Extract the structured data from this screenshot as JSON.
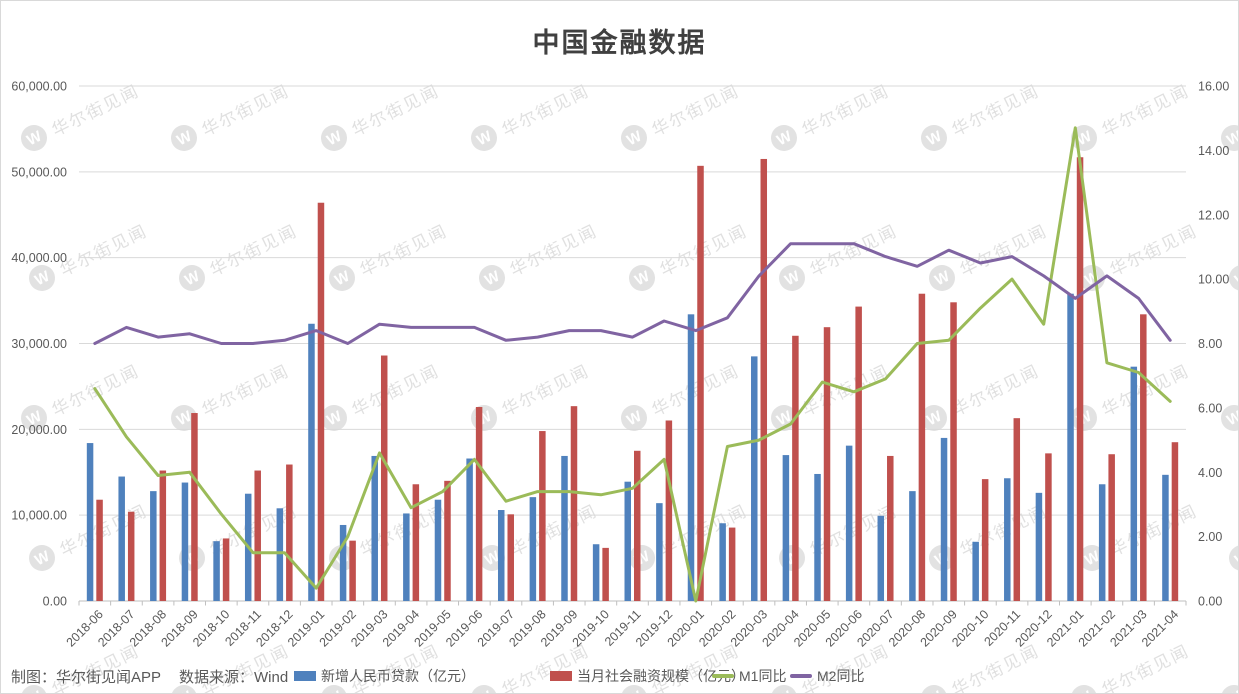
{
  "title": "中国金融数据",
  "watermark": {
    "logo": "W",
    "text": "华尔街见闻"
  },
  "footer": {
    "credit": "制图：华尔街见闻APP",
    "source": "数据来源：Wind"
  },
  "colors": {
    "loans_bar": "#4F81BD",
    "tsf_bar": "#C0504D",
    "m1_line": "#9BBB59",
    "m2_line": "#8064A2",
    "gridline": "#d9d9d9",
    "axis": "#bfbfbf",
    "axis_text": "#595959",
    "title_text": "#404040"
  },
  "chart_data": {
    "type": "combo-bar-line-dual-axis",
    "title": "中国金融数据",
    "grid": true,
    "legend_position": "bottom",
    "categories": [
      "2018-06",
      "2018-07",
      "2018-08",
      "2018-09",
      "2018-10",
      "2018-11",
      "2018-12",
      "2019-01",
      "2019-02",
      "2019-03",
      "2019-04",
      "2019-05",
      "2019-06",
      "2019-07",
      "2019-08",
      "2019-09",
      "2019-10",
      "2019-11",
      "2019-12",
      "2020-01",
      "2020-02",
      "2020-03",
      "2020-04",
      "2020-05",
      "2020-06",
      "2020-07",
      "2020-08",
      "2020-09",
      "2020-10",
      "2020-11",
      "2020-12",
      "2021-01",
      "2021-02",
      "2021-03",
      "2021-04"
    ],
    "left_axis": {
      "min": 0,
      "max": 60000,
      "step": 10000,
      "tick_labels": [
        "0.00",
        "10,000.00",
        "20,000.00",
        "30,000.00",
        "40,000.00",
        "50,000.00",
        "60,000.00"
      ]
    },
    "right_axis": {
      "min": 0,
      "max": 16,
      "step": 2,
      "tick_labels": [
        "0.00",
        "2.00",
        "4.00",
        "6.00",
        "8.00",
        "10.00",
        "12.00",
        "14.00",
        "16.00"
      ]
    },
    "series": [
      {
        "name": "新增人民币贷款（亿元）",
        "type": "bar",
        "axis": "left",
        "color": "#4F81BD",
        "values": [
          18400,
          14500,
          12800,
          13800,
          6970,
          12500,
          10800,
          32300,
          8858,
          16900,
          10200,
          11800,
          16600,
          10600,
          12100,
          16900,
          6613,
          13900,
          11400,
          33400,
          9057,
          28500,
          17000,
          14800,
          18100,
          9927,
          12800,
          19000,
          6898,
          14300,
          12600,
          35800,
          13600,
          27300,
          14700
        ]
      },
      {
        "name": "当月社会融资规模（亿元）",
        "type": "bar",
        "axis": "left",
        "color": "#C0504D",
        "values": [
          11800,
          10400,
          15200,
          21900,
          7288,
          15200,
          15900,
          46400,
          7030,
          28600,
          13600,
          14000,
          22600,
          10100,
          19800,
          22700,
          6189,
          17500,
          21030,
          50700,
          8554,
          51500,
          30900,
          31900,
          34300,
          16900,
          35800,
          34800,
          14200,
          21300,
          17200,
          51700,
          17100,
          33400,
          18500
        ]
      },
      {
        "name": "M1同比",
        "type": "line",
        "axis": "right",
        "color": "#9BBB59",
        "values": [
          6.6,
          5.1,
          3.9,
          4.0,
          2.7,
          1.5,
          1.5,
          0.4,
          2.0,
          4.6,
          2.9,
          3.4,
          4.4,
          3.1,
          3.4,
          3.4,
          3.3,
          3.5,
          4.4,
          0.0,
          4.8,
          5.0,
          5.5,
          6.8,
          6.5,
          6.9,
          8.0,
          8.1,
          9.1,
          10.0,
          8.6,
          14.7,
          7.4,
          7.1,
          6.2
        ]
      },
      {
        "name": "M2同比",
        "type": "line",
        "axis": "right",
        "color": "#8064A2",
        "values": [
          8.0,
          8.5,
          8.2,
          8.3,
          8.0,
          8.0,
          8.1,
          8.4,
          8.0,
          8.6,
          8.5,
          8.5,
          8.5,
          8.1,
          8.2,
          8.4,
          8.4,
          8.2,
          8.7,
          8.4,
          8.8,
          10.1,
          11.1,
          11.1,
          11.1,
          10.7,
          10.4,
          10.9,
          10.5,
          10.7,
          10.1,
          9.4,
          10.1,
          9.4,
          8.1
        ]
      }
    ]
  }
}
